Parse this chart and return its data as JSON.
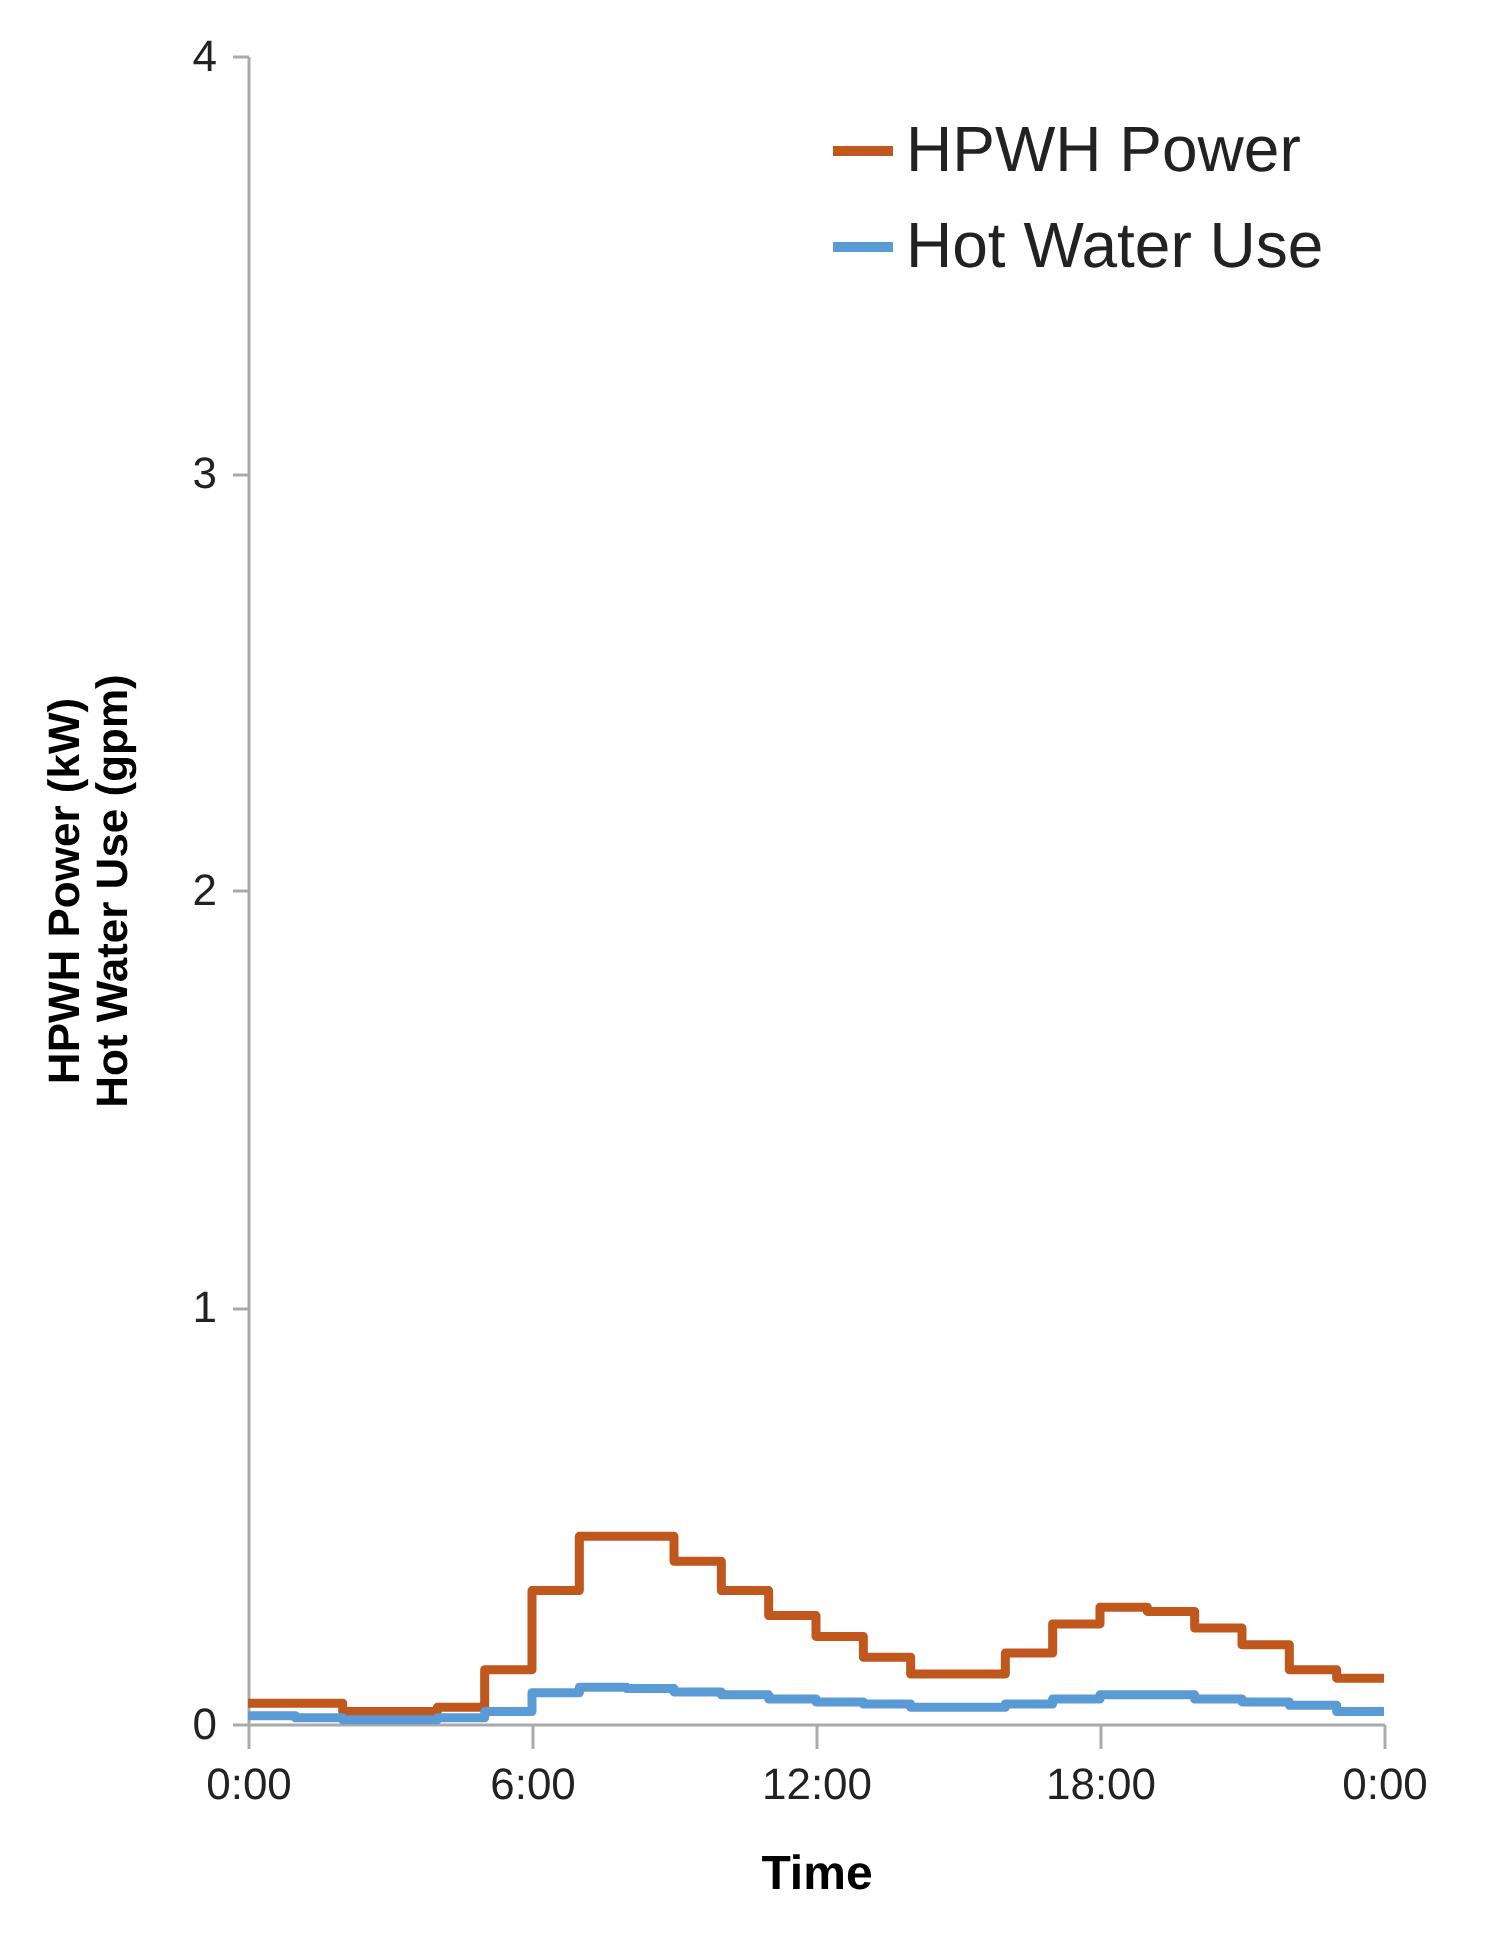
{
  "chart_data": {
    "type": "step",
    "xlabel": "Time",
    "ylabel": "HPWH Power (kW)\nHot Water Use (gpm)",
    "x": [
      0,
      1,
      2,
      3,
      4,
      5,
      6,
      7,
      8,
      9,
      10,
      11,
      12,
      13,
      14,
      15,
      16,
      17,
      18,
      19,
      20,
      21,
      22,
      23,
      24
    ],
    "series": [
      {
        "name": "HPWH Power",
        "color": "#c0571d",
        "values": [
          0.05,
          0.05,
          0.03,
          0.03,
          0.04,
          0.13,
          0.32,
          0.45,
          0.45,
          0.39,
          0.32,
          0.26,
          0.21,
          0.16,
          0.12,
          0.12,
          0.17,
          0.24,
          0.28,
          0.27,
          0.23,
          0.19,
          0.13,
          0.11,
          0.11
        ]
      },
      {
        "name": "Hot Water Use",
        "color": "#5b9bd5",
        "values": [
          0.02,
          0.015,
          0.01,
          0.01,
          0.015,
          0.03,
          0.075,
          0.088,
          0.085,
          0.077,
          0.07,
          0.06,
          0.053,
          0.048,
          0.04,
          0.04,
          0.048,
          0.06,
          0.07,
          0.07,
          0.06,
          0.053,
          0.045,
          0.03,
          0.03
        ]
      }
    ],
    "xlim": [
      0,
      24
    ],
    "xticks": [
      {
        "value": 0,
        "label": "0:00"
      },
      {
        "value": 6,
        "label": "6:00"
      },
      {
        "value": 12,
        "label": "12:00"
      },
      {
        "value": 18,
        "label": "18:00"
      },
      {
        "value": 24,
        "label": "0:00"
      }
    ],
    "ylim": [
      0,
      4
    ],
    "yticks": [
      0,
      1,
      2,
      3,
      4
    ],
    "grid": false,
    "legend": "top right",
    "line_style": "solid",
    "marker": "none"
  }
}
